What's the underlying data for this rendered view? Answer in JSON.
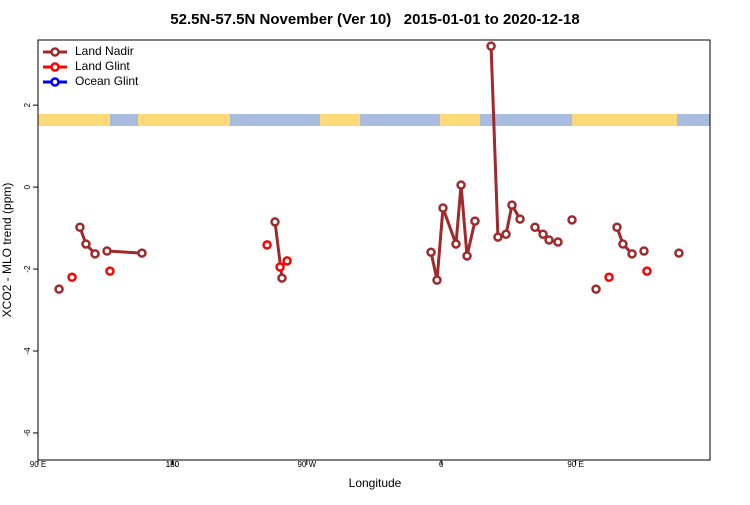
{
  "chart_data": {
    "type": "line",
    "title": "52.5N-57.5N November (Ver 10)   2015-01-01 to 2020-12-18",
    "x_label": "Longitude",
    "y_label": "XCO2 - MLO trend (ppm)",
    "xlim": [
      90,
      540
    ],
    "xticks": [
      {
        "value": 90,
        "label": "90 E"
      },
      180,
      {
        "value": 270,
        "label": "90 W"
      },
      {
        "value": 360,
        "label": "0"
      },
      {
        "value": 450,
        "label": "90 E"
      },
      180.0001
    ],
    "ylim": [
      -6.66,
      3.59
    ],
    "yticks": [
      -6,
      -4,
      -2,
      0,
      2
    ],
    "legend": "top-left",
    "series": [
      {
        "name": "Land Nadir",
        "color": "#a0292b",
        "x": [
          104.1,
          null,
          118.1,
          122.1,
          128.2,
          null,
          136.2,
          159.6,
          null,
          248.7,
          253.4,
          null,
          353.2,
          357.2,
          361.2,
          369.9,
          373.3,
          377.3,
          382.6,
          null,
          393.4,
          398.0,
          403.4,
          407.4,
          412.8,
          null,
          422.8,
          428.2,
          432.2,
          438.2,
          null,
          447.6,
          null,
          463.7,
          null,
          477.7,
          481.7,
          487.8,
          null,
          495.8,
          null,
          519.2
        ],
        "values": [
          -2.49,
          null,
          -0.98,
          -1.39,
          -1.63,
          null,
          -1.56,
          -1.61,
          null,
          -0.85,
          -2.22,
          null,
          -1.59,
          -2.27,
          -0.51,
          -1.39,
          0.05,
          -1.68,
          -0.83,
          null,
          3.44,
          -1.22,
          -1.15,
          -0.44,
          -0.78,
          null,
          -0.98,
          -1.15,
          -1.29,
          -1.34,
          null,
          -0.8,
          null,
          -2.49,
          null,
          -0.98,
          -1.39,
          -1.63,
          null,
          -1.56,
          null,
          -1.61
        ]
      },
      {
        "name": "Land Glint",
        "color": "#ff0000",
        "x": [
          112.8,
          null,
          138.2,
          null,
          243.4,
          null,
          252.1,
          256.8,
          null,
          472.4,
          null,
          497.8
        ],
        "values": [
          -2.2,
          null,
          -2.05,
          null,
          -1.41,
          null,
          -1.95,
          -1.8,
          null,
          -2.2,
          null,
          -2.05
        ]
      },
      {
        "name": "Ocean Glint",
        "color": "#0000ff",
        "x": [],
        "values": []
      }
    ]
  }
}
